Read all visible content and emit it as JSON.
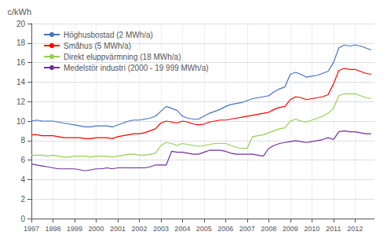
{
  "chart_data": {
    "type": "line",
    "ylabel": "c/kWh",
    "x": [
      1997.0,
      1997.25,
      1997.5,
      1997.75,
      1998.0,
      1998.25,
      1998.5,
      1998.75,
      1999.0,
      1999.25,
      1999.5,
      1999.75,
      2000.0,
      2000.25,
      2000.5,
      2000.75,
      2001.0,
      2001.25,
      2001.5,
      2001.75,
      2002.0,
      2002.25,
      2002.5,
      2002.75,
      2003.0,
      2003.25,
      2003.5,
      2003.75,
      2004.0,
      2004.25,
      2004.5,
      2004.75,
      2005.0,
      2005.25,
      2005.5,
      2005.75,
      2006.0,
      2006.25,
      2006.5,
      2006.75,
      2007.0,
      2007.25,
      2007.5,
      2007.75,
      2008.0,
      2008.25,
      2008.5,
      2008.75,
      2009.0,
      2009.25,
      2009.5,
      2009.75,
      2010.0,
      2010.25,
      2010.5,
      2010.75,
      2011.0,
      2011.25,
      2011.5,
      2011.75,
      2012.0,
      2012.25,
      2012.5,
      2012.75
    ],
    "series": [
      {
        "name": "Höghusbostad (2 MWh/a)",
        "color": "#4472C4",
        "values": [
          10.0,
          10.1,
          10.0,
          10.0,
          10.0,
          9.9,
          9.8,
          9.7,
          9.6,
          9.5,
          9.4,
          9.4,
          9.5,
          9.5,
          9.5,
          9.4,
          9.6,
          9.8,
          10.0,
          10.1,
          10.1,
          10.2,
          10.3,
          10.5,
          11.0,
          11.5,
          11.3,
          11.1,
          10.5,
          10.3,
          10.2,
          10.2,
          10.5,
          10.8,
          11.0,
          11.2,
          11.5,
          11.7,
          11.8,
          11.9,
          12.1,
          12.3,
          12.4,
          12.5,
          12.6,
          13.0,
          13.3,
          13.5,
          14.8,
          15.0,
          14.8,
          14.5,
          14.6,
          14.7,
          14.9,
          15.1,
          16.0,
          17.5,
          17.8,
          17.7,
          17.8,
          17.7,
          17.5,
          17.3
        ]
      },
      {
        "name": "Småhus (5 MWh/a)",
        "color": "#FF0000",
        "values": [
          8.6,
          8.6,
          8.5,
          8.5,
          8.5,
          8.4,
          8.3,
          8.3,
          8.3,
          8.3,
          8.2,
          8.2,
          8.3,
          8.3,
          8.3,
          8.2,
          8.4,
          8.5,
          8.6,
          8.7,
          8.7,
          8.8,
          9.0,
          9.2,
          9.8,
          10.0,
          9.9,
          9.8,
          10.0,
          9.9,
          9.7,
          9.6,
          9.7,
          9.9,
          10.0,
          10.1,
          10.1,
          10.2,
          10.3,
          10.4,
          10.5,
          10.6,
          10.7,
          10.8,
          10.9,
          11.2,
          11.4,
          11.5,
          12.2,
          12.5,
          12.4,
          12.2,
          12.3,
          12.4,
          12.5,
          12.7,
          13.8,
          15.2,
          15.4,
          15.3,
          15.3,
          15.1,
          14.9,
          14.8
        ]
      },
      {
        "name": "Direkt eluppvärmning (18 MWh/a)",
        "color": "#92D050",
        "values": [
          6.5,
          6.5,
          6.5,
          6.4,
          6.5,
          6.4,
          6.3,
          6.3,
          6.4,
          6.4,
          6.4,
          6.3,
          6.4,
          6.4,
          6.4,
          6.3,
          6.4,
          6.5,
          6.6,
          6.6,
          6.5,
          6.5,
          6.6,
          6.7,
          7.5,
          7.8,
          7.7,
          7.5,
          7.7,
          7.6,
          7.5,
          7.4,
          7.5,
          7.6,
          7.7,
          7.7,
          7.7,
          7.5,
          7.3,
          7.2,
          7.2,
          8.4,
          8.5,
          8.6,
          8.8,
          9.0,
          9.2,
          9.3,
          10.0,
          10.2,
          10.0,
          9.9,
          10.1,
          10.3,
          10.5,
          10.8,
          11.3,
          12.6,
          12.8,
          12.8,
          12.8,
          12.6,
          12.4,
          12.3
        ]
      },
      {
        "name": "Medelstör industri (2000 - 19 999 MWh/a)",
        "color": "#7030A0",
        "values": [
          5.6,
          5.5,
          5.4,
          5.3,
          5.2,
          5.1,
          5.1,
          5.1,
          5.1,
          5.0,
          4.9,
          5.0,
          5.1,
          5.1,
          5.2,
          5.1,
          5.2,
          5.2,
          5.2,
          5.2,
          5.2,
          5.2,
          5.3,
          5.5,
          5.5,
          5.5,
          6.9,
          6.8,
          6.8,
          6.7,
          6.6,
          6.6,
          6.8,
          7.0,
          7.0,
          7.0,
          6.9,
          6.7,
          6.6,
          6.6,
          6.6,
          6.6,
          6.5,
          6.4,
          7.2,
          7.5,
          7.7,
          7.8,
          7.9,
          8.0,
          7.9,
          7.8,
          7.9,
          8.0,
          8.1,
          8.3,
          8.1,
          8.9,
          9.0,
          8.9,
          8.9,
          8.8,
          8.7,
          8.7
        ]
      }
    ],
    "xlim": [
      1997,
      2012.9
    ],
    "xticks": [
      1997,
      1998,
      1999,
      2000,
      2001,
      2002,
      2003,
      2004,
      2005,
      2006,
      2007,
      2008,
      2009,
      2010,
      2011,
      2012
    ],
    "ylim": [
      0,
      20
    ],
    "yticks": [
      0,
      2,
      4,
      6,
      8,
      10,
      12,
      14,
      16,
      18,
      20
    ],
    "grid": true,
    "legend": "upper left"
  }
}
